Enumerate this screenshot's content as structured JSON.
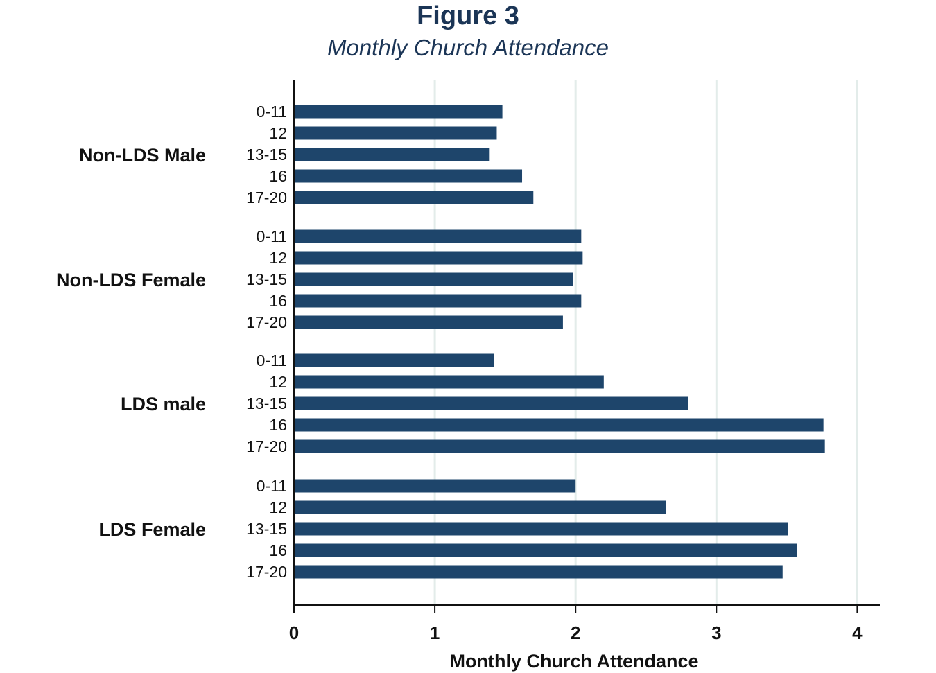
{
  "figure": {
    "title": "Figure 3",
    "subtitle": "Monthly Church Attendance"
  },
  "colors": {
    "bar": "#1e456b",
    "title": "#1b3556",
    "grid": "#e3ecea",
    "axis": "#111111"
  },
  "chart_data": {
    "type": "bar",
    "orientation": "horizontal",
    "title": "Figure 3",
    "subtitle": "Monthly Church Attendance",
    "xlabel": "Monthly Church Attendance",
    "ylabel": "",
    "xlim": [
      0,
      4.15
    ],
    "xticks": [
      0,
      1,
      2,
      3,
      4
    ],
    "grid": "vertical",
    "groups": [
      {
        "name": "Non-LDS Male",
        "categories": [
          "0-11",
          "12",
          "13-15",
          "16",
          "17-20"
        ],
        "values": [
          1.48,
          1.44,
          1.39,
          1.62,
          1.7
        ]
      },
      {
        "name": "Non-LDS Female",
        "categories": [
          "0-11",
          "12",
          "13-15",
          "16",
          "17-20"
        ],
        "values": [
          2.04,
          2.05,
          1.98,
          2.04,
          1.91
        ]
      },
      {
        "name": "LDS male",
        "categories": [
          "0-11",
          "12",
          "13-15",
          "16",
          "17-20"
        ],
        "values": [
          1.42,
          2.2,
          2.8,
          3.76,
          3.77
        ]
      },
      {
        "name": "LDS Female",
        "categories": [
          "0-11",
          "12",
          "13-15",
          "16",
          "17-20"
        ],
        "values": [
          2.0,
          2.64,
          3.51,
          3.57,
          3.47
        ]
      }
    ]
  }
}
